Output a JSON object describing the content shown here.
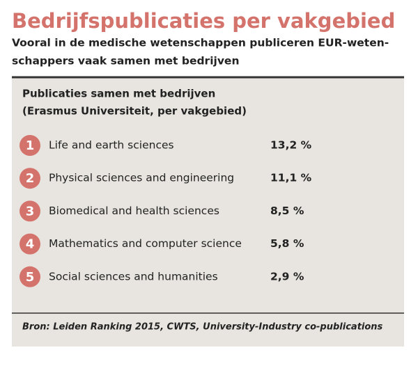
{
  "header": {
    "title": "Bedrijfspublicaties per vakgebied",
    "subtitle": [
      "Vooral in de medische wetenschappen publiceren EUR-weten-",
      "schappers vaak samen met bedrijven"
    ]
  },
  "panel": {
    "title": [
      "Publicaties samen met bedrijven",
      "(Erasmus Universiteit, per vakgebied)"
    ],
    "items": [
      {
        "rank": "1",
        "label": "Life and earth sciences",
        "value": "13,2 %"
      },
      {
        "rank": "2",
        "label": "Physical sciences and engineering",
        "value": "11,1 %"
      },
      {
        "rank": "3",
        "label": "Biomedical and health sciences",
        "value": "8,5 %"
      },
      {
        "rank": "4",
        "label": "Mathematics and computer science",
        "value": "5,8 %"
      },
      {
        "rank": "5",
        "label": "Social sciences and humanities",
        "value": "2,9 %"
      }
    ],
    "source": "Bron: Leiden Ranking 2015, CWTS, University-Industry co-publications"
  }
}
